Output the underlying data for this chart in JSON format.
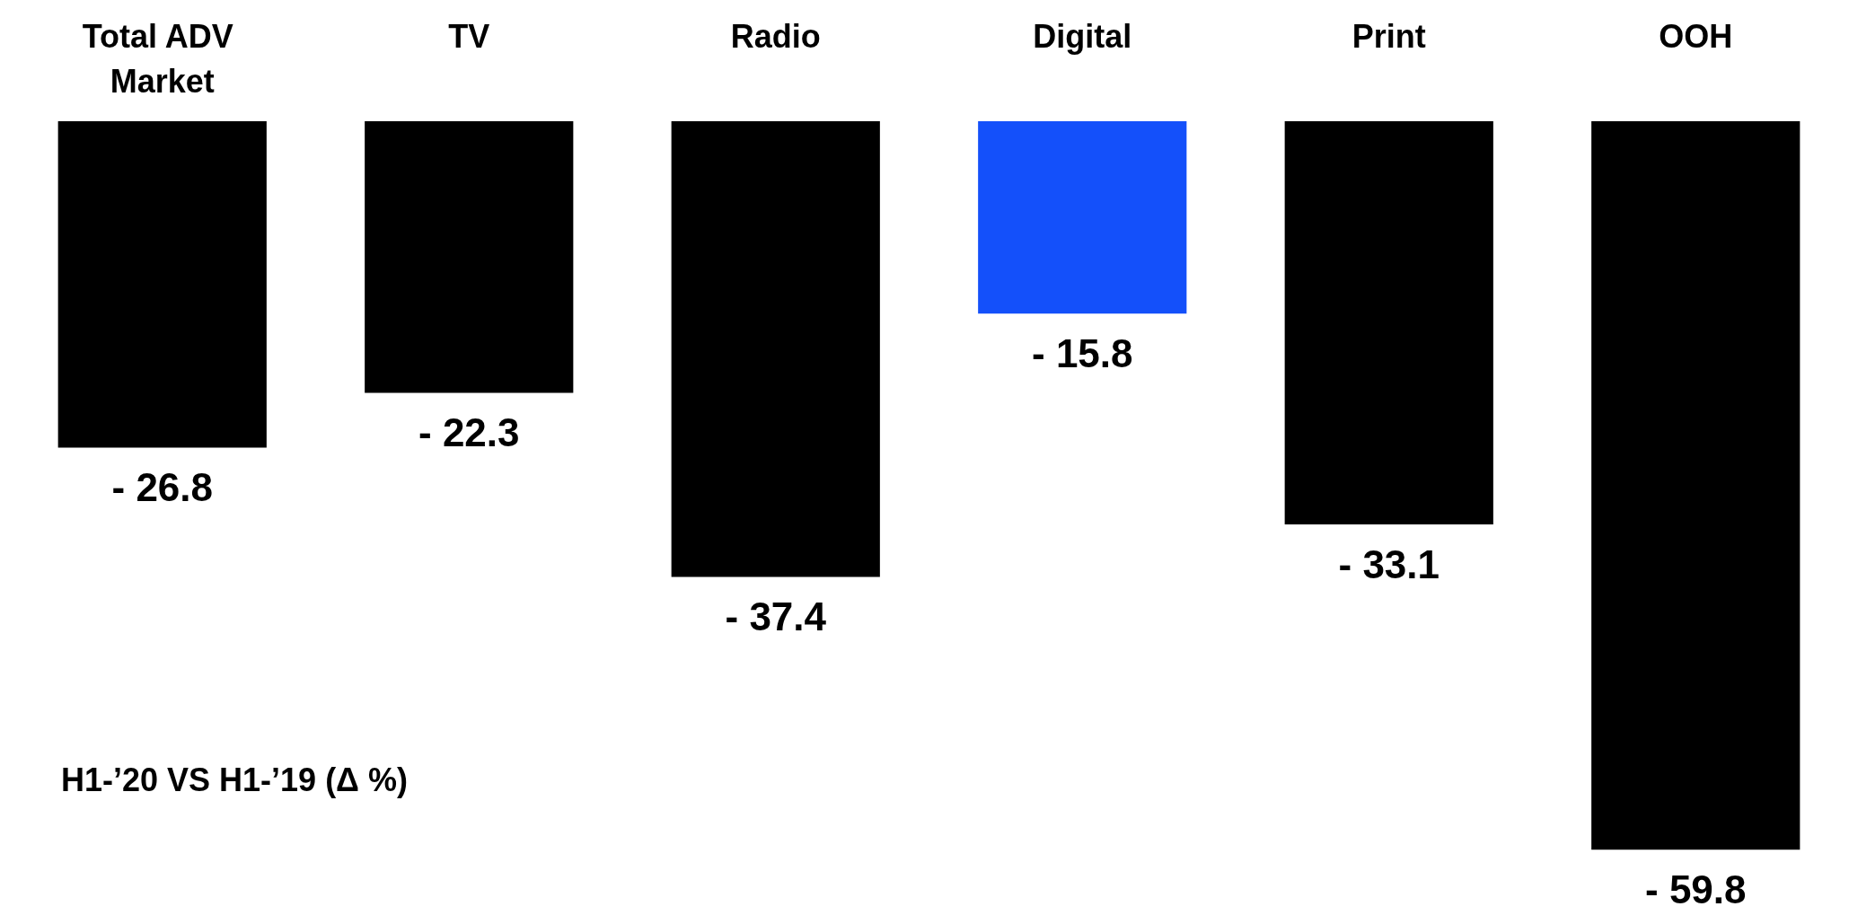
{
  "chart_data": {
    "type": "bar",
    "categories": [
      "Total ADV Market",
      "TV",
      "Radio",
      "Digital",
      "Print",
      "OOH"
    ],
    "values": [
      -26.8,
      -22.3,
      -37.4,
      -15.8,
      -33.1,
      -59.8
    ],
    "colors": [
      "#000000",
      "#000000",
      "#000000",
      "#1450fa",
      "#000000",
      "#000000"
    ],
    "value_labels": [
      "- 26.8",
      "- 22.3",
      "- 37.4",
      "- 15.8",
      "- 33.1",
      "- 59.8"
    ],
    "annotations": [
      "H1-’20 VS H1-’19 (Δ %)"
    ]
  }
}
